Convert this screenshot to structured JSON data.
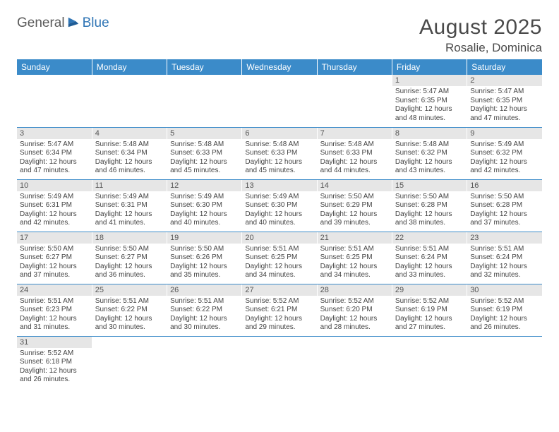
{
  "logo": {
    "part1": "General",
    "part2": "Blue",
    "icon_fill": "#2f75b5"
  },
  "title": "August 2025",
  "location": "Rosalie, Dominica",
  "header_bg": "#3b8bc9",
  "weekday_bg": "#e6e6e6",
  "day_headers": [
    "Sunday",
    "Monday",
    "Tuesday",
    "Wednesday",
    "Thursday",
    "Friday",
    "Saturday"
  ],
  "weeks": [
    [
      null,
      null,
      null,
      null,
      null,
      {
        "n": "1",
        "sr": "Sunrise: 5:47 AM",
        "ss": "Sunset: 6:35 PM",
        "dl": "Daylight: 12 hours and 48 minutes."
      },
      {
        "n": "2",
        "sr": "Sunrise: 5:47 AM",
        "ss": "Sunset: 6:35 PM",
        "dl": "Daylight: 12 hours and 47 minutes."
      }
    ],
    [
      {
        "n": "3",
        "sr": "Sunrise: 5:47 AM",
        "ss": "Sunset: 6:34 PM",
        "dl": "Daylight: 12 hours and 47 minutes."
      },
      {
        "n": "4",
        "sr": "Sunrise: 5:48 AM",
        "ss": "Sunset: 6:34 PM",
        "dl": "Daylight: 12 hours and 46 minutes."
      },
      {
        "n": "5",
        "sr": "Sunrise: 5:48 AM",
        "ss": "Sunset: 6:33 PM",
        "dl": "Daylight: 12 hours and 45 minutes."
      },
      {
        "n": "6",
        "sr": "Sunrise: 5:48 AM",
        "ss": "Sunset: 6:33 PM",
        "dl": "Daylight: 12 hours and 45 minutes."
      },
      {
        "n": "7",
        "sr": "Sunrise: 5:48 AM",
        "ss": "Sunset: 6:33 PM",
        "dl": "Daylight: 12 hours and 44 minutes."
      },
      {
        "n": "8",
        "sr": "Sunrise: 5:48 AM",
        "ss": "Sunset: 6:32 PM",
        "dl": "Daylight: 12 hours and 43 minutes."
      },
      {
        "n": "9",
        "sr": "Sunrise: 5:49 AM",
        "ss": "Sunset: 6:32 PM",
        "dl": "Daylight: 12 hours and 42 minutes."
      }
    ],
    [
      {
        "n": "10",
        "sr": "Sunrise: 5:49 AM",
        "ss": "Sunset: 6:31 PM",
        "dl": "Daylight: 12 hours and 42 minutes."
      },
      {
        "n": "11",
        "sr": "Sunrise: 5:49 AM",
        "ss": "Sunset: 6:31 PM",
        "dl": "Daylight: 12 hours and 41 minutes."
      },
      {
        "n": "12",
        "sr": "Sunrise: 5:49 AM",
        "ss": "Sunset: 6:30 PM",
        "dl": "Daylight: 12 hours and 40 minutes."
      },
      {
        "n": "13",
        "sr": "Sunrise: 5:49 AM",
        "ss": "Sunset: 6:30 PM",
        "dl": "Daylight: 12 hours and 40 minutes."
      },
      {
        "n": "14",
        "sr": "Sunrise: 5:50 AM",
        "ss": "Sunset: 6:29 PM",
        "dl": "Daylight: 12 hours and 39 minutes."
      },
      {
        "n": "15",
        "sr": "Sunrise: 5:50 AM",
        "ss": "Sunset: 6:28 PM",
        "dl": "Daylight: 12 hours and 38 minutes."
      },
      {
        "n": "16",
        "sr": "Sunrise: 5:50 AM",
        "ss": "Sunset: 6:28 PM",
        "dl": "Daylight: 12 hours and 37 minutes."
      }
    ],
    [
      {
        "n": "17",
        "sr": "Sunrise: 5:50 AM",
        "ss": "Sunset: 6:27 PM",
        "dl": "Daylight: 12 hours and 37 minutes."
      },
      {
        "n": "18",
        "sr": "Sunrise: 5:50 AM",
        "ss": "Sunset: 6:27 PM",
        "dl": "Daylight: 12 hours and 36 minutes."
      },
      {
        "n": "19",
        "sr": "Sunrise: 5:50 AM",
        "ss": "Sunset: 6:26 PM",
        "dl": "Daylight: 12 hours and 35 minutes."
      },
      {
        "n": "20",
        "sr": "Sunrise: 5:51 AM",
        "ss": "Sunset: 6:25 PM",
        "dl": "Daylight: 12 hours and 34 minutes."
      },
      {
        "n": "21",
        "sr": "Sunrise: 5:51 AM",
        "ss": "Sunset: 6:25 PM",
        "dl": "Daylight: 12 hours and 34 minutes."
      },
      {
        "n": "22",
        "sr": "Sunrise: 5:51 AM",
        "ss": "Sunset: 6:24 PM",
        "dl": "Daylight: 12 hours and 33 minutes."
      },
      {
        "n": "23",
        "sr": "Sunrise: 5:51 AM",
        "ss": "Sunset: 6:24 PM",
        "dl": "Daylight: 12 hours and 32 minutes."
      }
    ],
    [
      {
        "n": "24",
        "sr": "Sunrise: 5:51 AM",
        "ss": "Sunset: 6:23 PM",
        "dl": "Daylight: 12 hours and 31 minutes."
      },
      {
        "n": "25",
        "sr": "Sunrise: 5:51 AM",
        "ss": "Sunset: 6:22 PM",
        "dl": "Daylight: 12 hours and 30 minutes."
      },
      {
        "n": "26",
        "sr": "Sunrise: 5:51 AM",
        "ss": "Sunset: 6:22 PM",
        "dl": "Daylight: 12 hours and 30 minutes."
      },
      {
        "n": "27",
        "sr": "Sunrise: 5:52 AM",
        "ss": "Sunset: 6:21 PM",
        "dl": "Daylight: 12 hours and 29 minutes."
      },
      {
        "n": "28",
        "sr": "Sunrise: 5:52 AM",
        "ss": "Sunset: 6:20 PM",
        "dl": "Daylight: 12 hours and 28 minutes."
      },
      {
        "n": "29",
        "sr": "Sunrise: 5:52 AM",
        "ss": "Sunset: 6:19 PM",
        "dl": "Daylight: 12 hours and 27 minutes."
      },
      {
        "n": "30",
        "sr": "Sunrise: 5:52 AM",
        "ss": "Sunset: 6:19 PM",
        "dl": "Daylight: 12 hours and 26 minutes."
      }
    ],
    [
      {
        "n": "31",
        "sr": "Sunrise: 5:52 AM",
        "ss": "Sunset: 6:18 PM",
        "dl": "Daylight: 12 hours and 26 minutes."
      },
      null,
      null,
      null,
      null,
      null,
      null
    ]
  ]
}
